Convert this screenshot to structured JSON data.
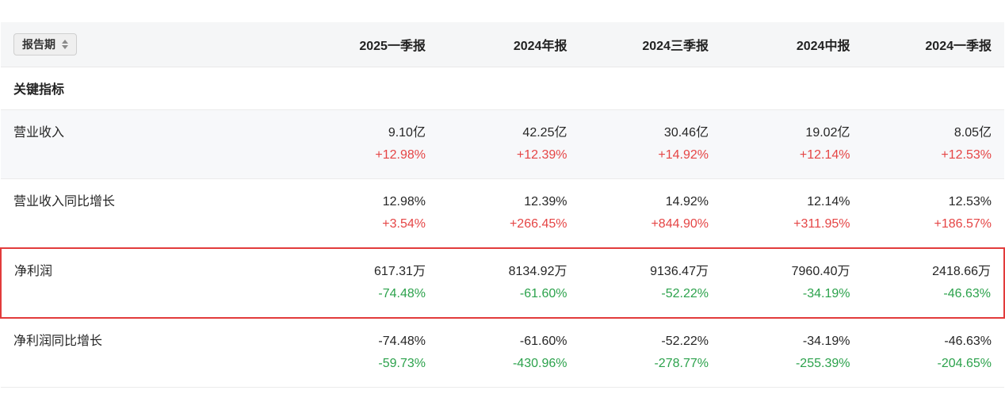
{
  "table": {
    "header": {
      "sort_button_label": "报告期",
      "columns": [
        "2025一季报",
        "2024年报",
        "2024三季报",
        "2024中报",
        "2024一季报"
      ]
    },
    "section_title": "关键指标",
    "rows": [
      {
        "label": "营业收入",
        "highlighted": false,
        "cells": [
          {
            "value": "9.10亿",
            "change": "+12.98%"
          },
          {
            "value": "42.25亿",
            "change": "+12.39%"
          },
          {
            "value": "30.46亿",
            "change": "+14.92%"
          },
          {
            "value": "19.02亿",
            "change": "+12.14%"
          },
          {
            "value": "8.05亿",
            "change": "+12.53%"
          }
        ]
      },
      {
        "label": "营业收入同比增长",
        "highlighted": false,
        "cells": [
          {
            "value": "12.98%",
            "change": "+3.54%"
          },
          {
            "value": "12.39%",
            "change": "+266.45%"
          },
          {
            "value": "14.92%",
            "change": "+844.90%"
          },
          {
            "value": "12.14%",
            "change": "+311.95%"
          },
          {
            "value": "12.53%",
            "change": "+186.57%"
          }
        ]
      },
      {
        "label": "净利润",
        "highlighted": true,
        "cells": [
          {
            "value": "617.31万",
            "change": "-74.48%"
          },
          {
            "value": "8134.92万",
            "change": "-61.60%"
          },
          {
            "value": "9136.47万",
            "change": "-52.22%"
          },
          {
            "value": "7960.40万",
            "change": "-34.19%"
          },
          {
            "value": "2418.66万",
            "change": "-46.63%"
          }
        ]
      },
      {
        "label": "净利润同比增长",
        "highlighted": false,
        "cells": [
          {
            "value": "-74.48%",
            "change": "-59.73%"
          },
          {
            "value": "-61.60%",
            "change": "-430.96%"
          },
          {
            "value": "-52.22%",
            "change": "-278.77%"
          },
          {
            "value": "-34.19%",
            "change": "-255.39%"
          },
          {
            "value": "-46.63%",
            "change": "-204.65%"
          }
        ]
      }
    ]
  },
  "colors": {
    "positive_change": "#e54545",
    "negative_change": "#2ca24c",
    "highlight_border": "#e23b3b"
  }
}
